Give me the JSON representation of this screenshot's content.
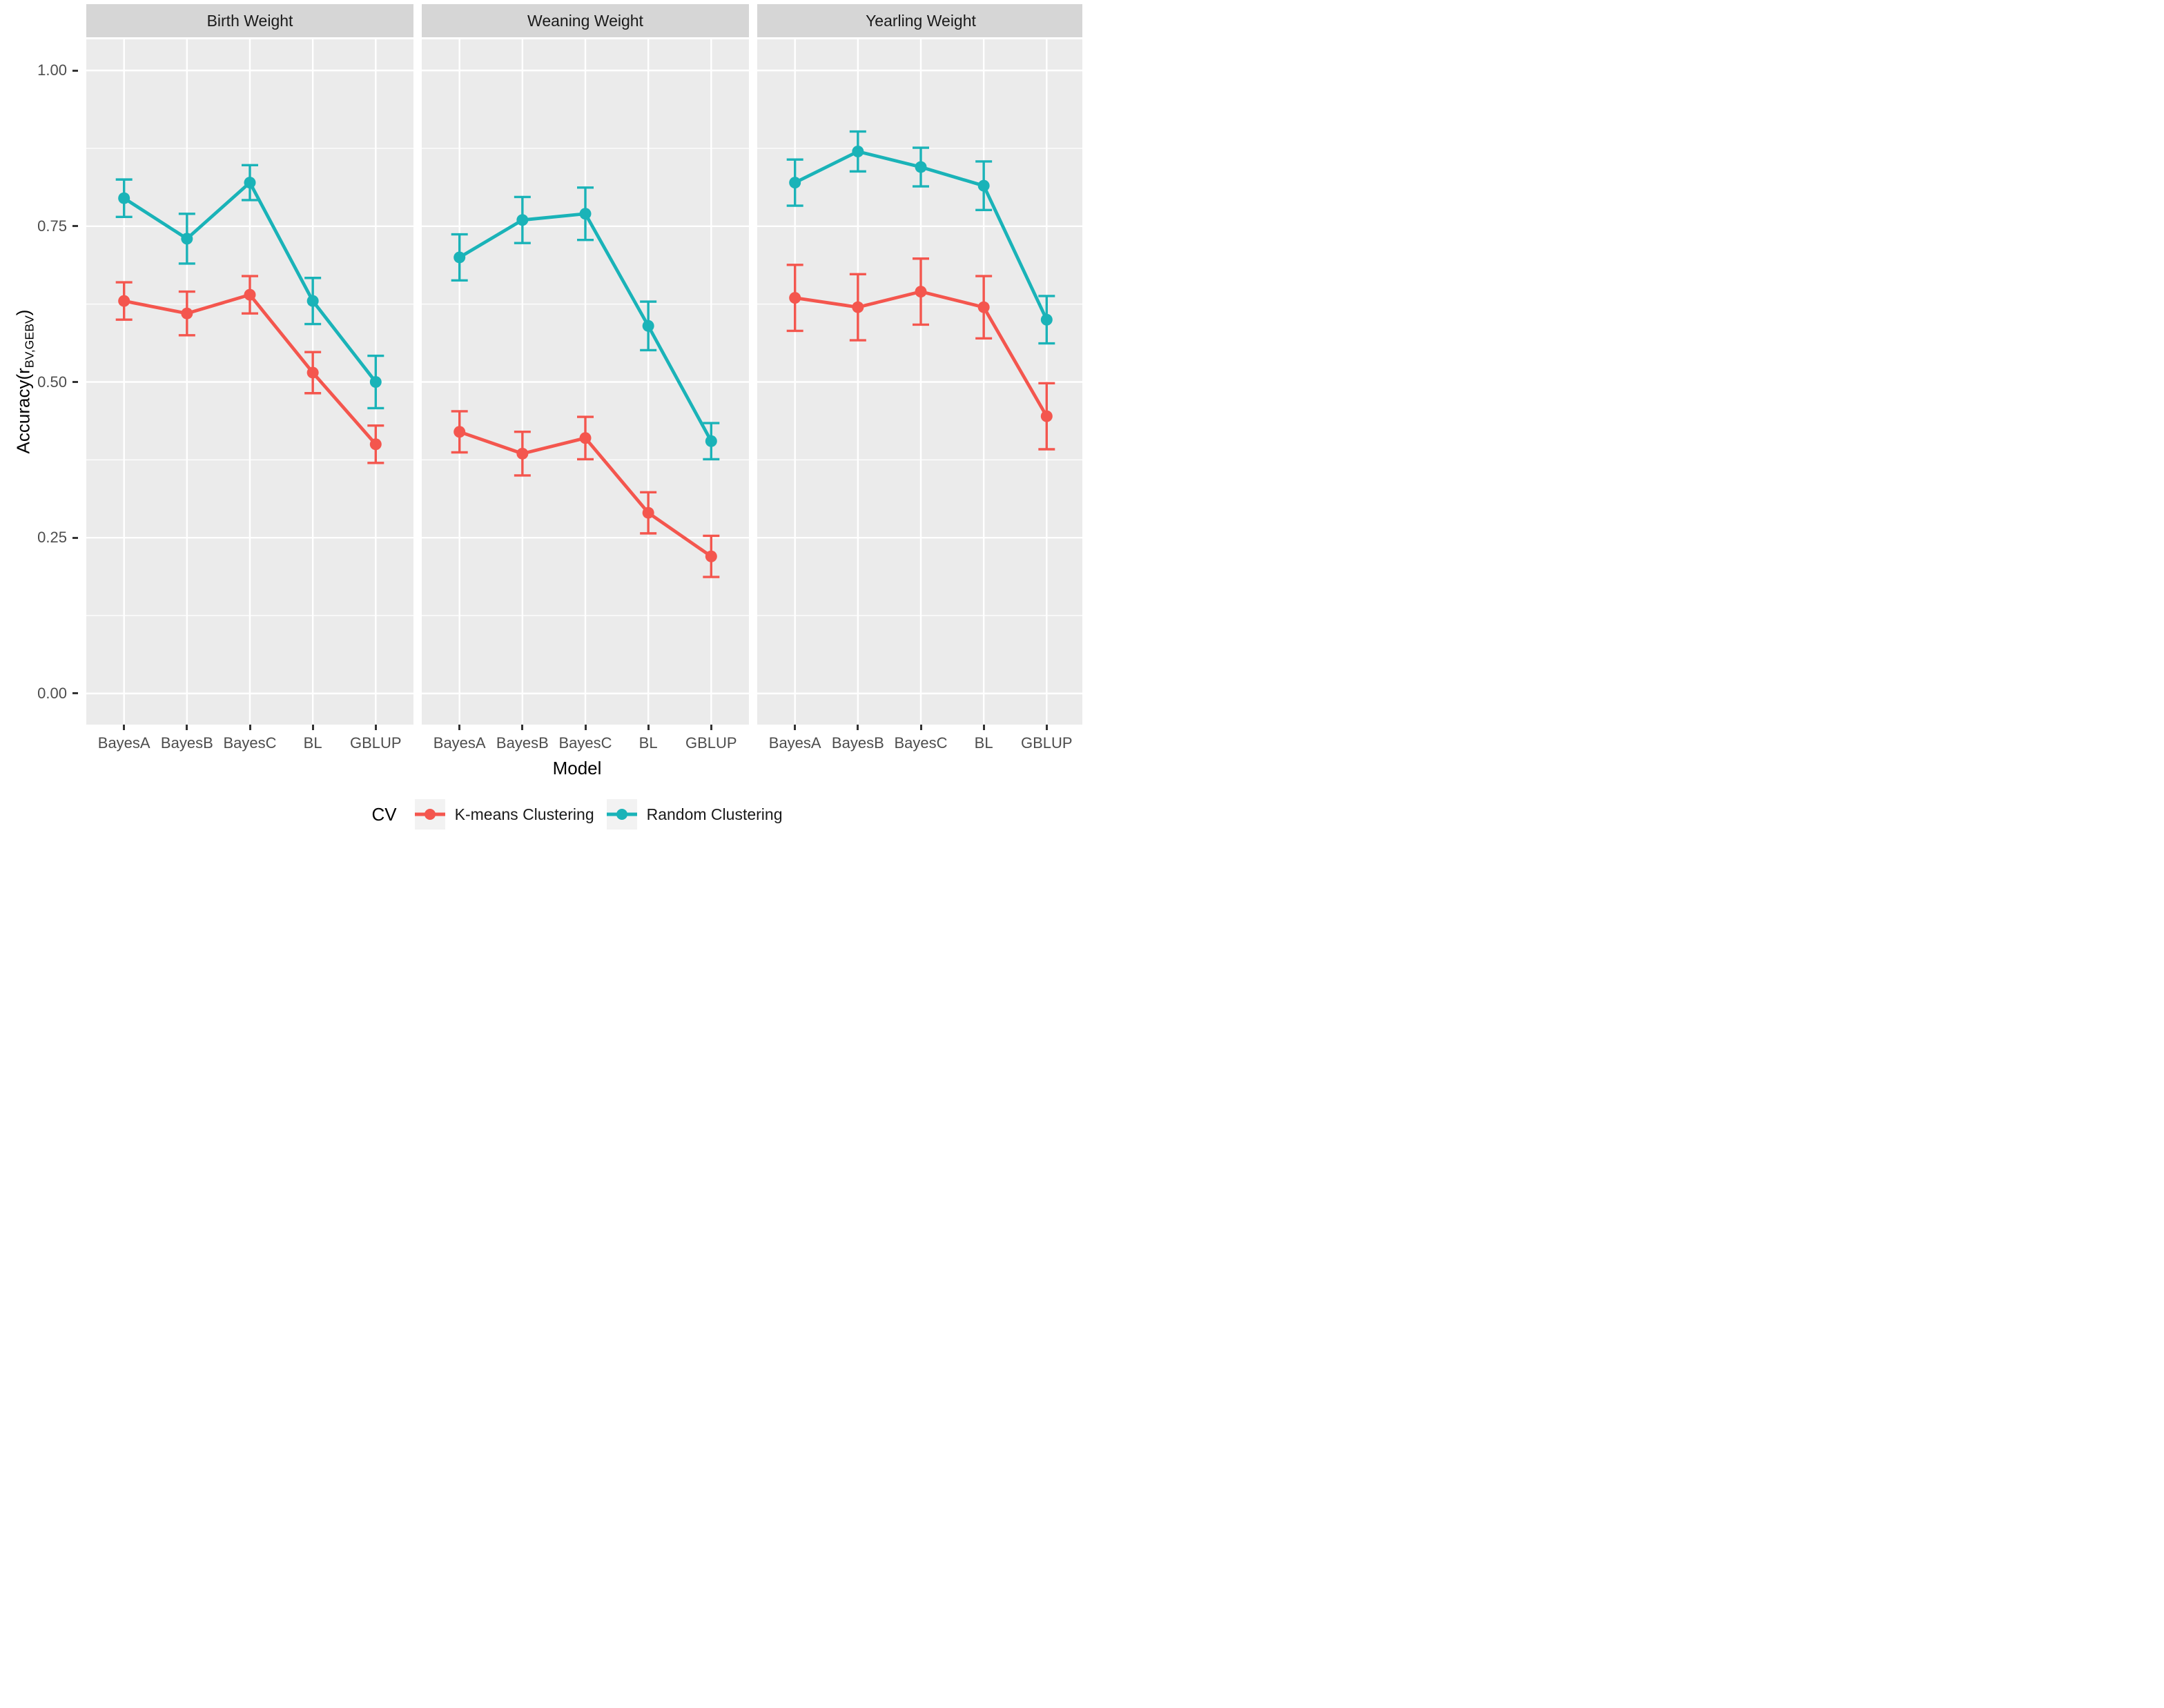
{
  "chart_data": {
    "type": "line",
    "faceted": true,
    "facet_titles": [
      "Birth Weight",
      "Weaning Weight",
      "Yearling Weight"
    ],
    "categories": [
      "BayesA",
      "BayesB",
      "BayesC",
      "BL",
      "GBLUP"
    ],
    "xlabel": "Model",
    "ylabel_prefix": "Accuracy(r",
    "ylabel_sub": "BV,GEBV",
    "ylabel_suffix": ")",
    "ylim": [
      -0.05,
      1.05
    ],
    "y_major": [
      0,
      0.25,
      0.5,
      0.75,
      1.0
    ],
    "y_minor": [
      0.125,
      0.375,
      0.625,
      0.875
    ],
    "yticks": [
      "1.00",
      "0.75",
      "0.50",
      "0.25",
      "0.00"
    ],
    "ytick_values": [
      1.0,
      0.75,
      0.5,
      0.25,
      0.0
    ],
    "legend": {
      "title": "CV",
      "position": "bottom"
    },
    "panels": [
      {
        "title": "Birth Weight",
        "series": [
          {
            "name": "K-means Clustering",
            "values": [
              0.63,
              0.61,
              0.64,
              0.515,
              0.4
            ],
            "errors": [
              0.03,
              0.035,
              0.03,
              0.033,
              0.03
            ]
          },
          {
            "name": "Random Clustering",
            "values": [
              0.795,
              0.73,
              0.82,
              0.63,
              0.5
            ],
            "errors": [
              0.03,
              0.04,
              0.028,
              0.037,
              0.042
            ]
          }
        ]
      },
      {
        "title": "Weaning Weight",
        "series": [
          {
            "name": "K-means Clustering",
            "values": [
              0.42,
              0.385,
              0.41,
              0.29,
              0.22
            ],
            "errors": [
              0.033,
              0.035,
              0.034,
              0.033,
              0.033
            ]
          },
          {
            "name": "Random Clustering",
            "values": [
              0.7,
              0.76,
              0.77,
              0.59,
              0.405
            ],
            "errors": [
              0.037,
              0.037,
              0.042,
              0.039,
              0.029
            ]
          }
        ]
      },
      {
        "title": "Yearling Weight",
        "series": [
          {
            "name": "K-means Clustering",
            "values": [
              0.635,
              0.62,
              0.645,
              0.62,
              0.445
            ],
            "errors": [
              0.053,
              0.053,
              0.053,
              0.05,
              0.053
            ]
          },
          {
            "name": "Random Clustering",
            "values": [
              0.82,
              0.87,
              0.845,
              0.815,
              0.6
            ],
            "errors": [
              0.037,
              0.032,
              0.031,
              0.039,
              0.038
            ]
          }
        ]
      }
    ],
    "style": {
      "series_colors": [
        "#F4564E",
        "#1AB3B8"
      ],
      "panel_bg": "#EBEBEB",
      "grid_color": "#FFFFFF",
      "strip_bg": "#D6D6D6",
      "strip_text": "#1A1A1A",
      "axis_text": "#4D4D4D",
      "axis_title": "#000000",
      "legend_key_bg": "#F2F2F2",
      "tick_color": "#333333"
    }
  }
}
